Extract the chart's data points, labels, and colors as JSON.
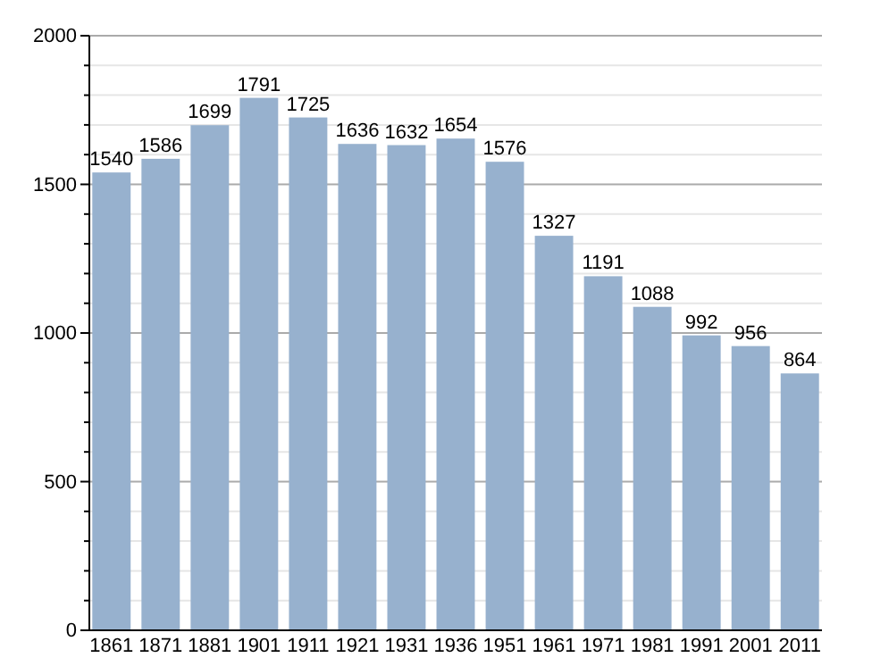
{
  "chart_data": {
    "type": "bar",
    "categories": [
      "1861",
      "1871",
      "1881",
      "1901",
      "1911",
      "1921",
      "1931",
      "1936",
      "1951",
      "1961",
      "1971",
      "1981",
      "1991",
      "2001",
      "2011"
    ],
    "values": [
      1540,
      1586,
      1699,
      1791,
      1725,
      1636,
      1632,
      1654,
      1576,
      1327,
      1191,
      1088,
      992,
      956,
      864
    ],
    "color": "#97b1ce",
    "ylim": [
      0,
      2000
    ],
    "yticks": [
      0,
      {
        "value": 100,
        "label": null
      },
      {
        "value": 200,
        "label": null
      },
      {
        "value": 300,
        "label": null
      },
      {
        "value": 400,
        "label": null
      },
      500,
      {
        "value": 600,
        "label": null
      },
      {
        "value": 700,
        "label": null
      },
      {
        "value": 800,
        "label": null
      },
      {
        "value": 900,
        "label": null
      },
      1000,
      {
        "value": 1100,
        "label": null
      },
      {
        "value": 1200,
        "label": null
      },
      {
        "value": 1300,
        "label": null
      },
      {
        "value": 1400,
        "label": null
      },
      1500,
      {
        "value": 1600,
        "label": null
      },
      {
        "value": 1700,
        "label": null
      },
      {
        "value": 1800,
        "label": null
      },
      {
        "value": 1900,
        "label": null
      },
      2000
    ],
    "grid": true,
    "data_labels": true
  }
}
